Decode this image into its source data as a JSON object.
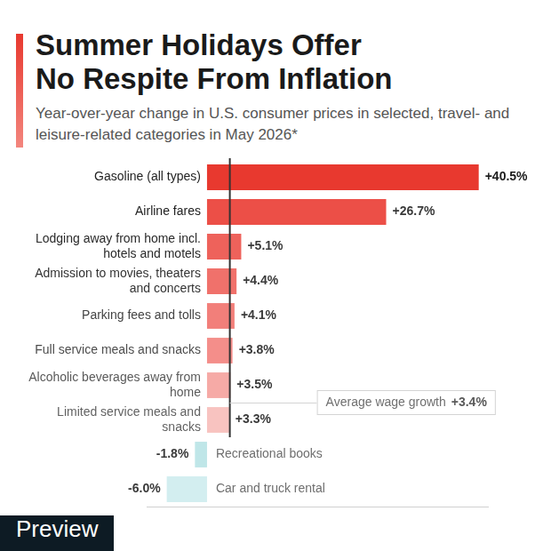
{
  "chart_data": {
    "type": "bar",
    "orientation": "horizontal",
    "title": "Summer Holidays Offer No Respite From Inflation",
    "subtitle": "Year-over-year change in U.S. consumer prices in selected, travel- and leisure-related categories in May 2026*",
    "categories": [
      "Gasoline (all types)",
      "Airline fares",
      "Lodging away from home incl. hotels and motels",
      "Admission to movies, theaters and concerts",
      "Parking fees and tolls",
      "Full service meals and snacks",
      "Alcoholic beverages away from home",
      "Limited service meals and snacks",
      "Recreational books",
      "Car and truck rental"
    ],
    "values": [
      40.5,
      26.7,
      5.1,
      4.4,
      4.1,
      3.8,
      3.5,
      3.3,
      -1.8,
      -6.0
    ],
    "value_labels": [
      "+40.5%",
      "+26.7%",
      "+5.1%",
      "+4.4%",
      "+4.1%",
      "+3.8%",
      "+3.5%",
      "+3.3%",
      "-1.8%",
      "-6.0%"
    ],
    "colors": [
      "#e8392f",
      "#ec4f47",
      "#ee625b",
      "#f0716b",
      "#f27f7a",
      "#f48e8a",
      "#f6aaa6",
      "#f8c3c0",
      "#bfe6e8",
      "#d3eef0"
    ],
    "xlim": [
      -9,
      42
    ],
    "xticks": [],
    "grid": false,
    "data_labels": true,
    "tick_labels": "y",
    "annotations": [
      {
        "text": "Average wage growth",
        "value": 3.4,
        "value_label": "+3.4%"
      }
    ],
    "watermark": "Preview"
  }
}
